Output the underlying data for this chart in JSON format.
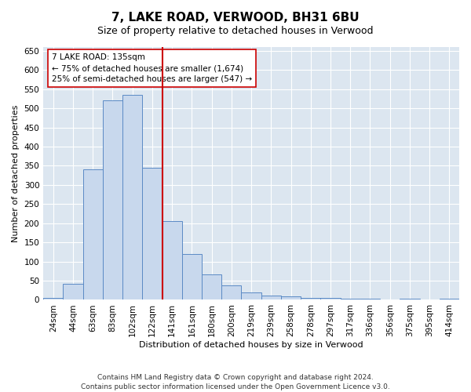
{
  "title": "7, LAKE ROAD, VERWOOD, BH31 6BU",
  "subtitle": "Size of property relative to detached houses in Verwood",
  "xlabel": "Distribution of detached houses by size in Verwood",
  "ylabel": "Number of detached properties",
  "bar_labels": [
    "24sqm",
    "44sqm",
    "63sqm",
    "83sqm",
    "102sqm",
    "122sqm",
    "141sqm",
    "161sqm",
    "180sqm",
    "200sqm",
    "219sqm",
    "239sqm",
    "258sqm",
    "278sqm",
    "297sqm",
    "317sqm",
    "336sqm",
    "356sqm",
    "375sqm",
    "395sqm",
    "414sqm"
  ],
  "bar_values": [
    5,
    42,
    340,
    520,
    535,
    345,
    205,
    120,
    67,
    37,
    19,
    12,
    10,
    5,
    5,
    2,
    2,
    0,
    2,
    0,
    3
  ],
  "bar_color": "#c8d8ed",
  "bar_edge_color": "#5b8ac5",
  "vline_color": "#cc0000",
  "annotation_text": "7 LAKE ROAD: 135sqm\n← 75% of detached houses are smaller (1,674)\n25% of semi-detached houses are larger (547) →",
  "annotation_box_color": "#ffffff",
  "annotation_box_edge": "#cc0000",
  "ylim": [
    0,
    660
  ],
  "yticks": [
    0,
    50,
    100,
    150,
    200,
    250,
    300,
    350,
    400,
    450,
    500,
    550,
    600,
    650
  ],
  "footer": "Contains HM Land Registry data © Crown copyright and database right 2024.\nContains public sector information licensed under the Open Government Licence v3.0.",
  "fig_bg_color": "#ffffff",
  "plot_bg_color": "#dce6f0",
  "grid_color": "#ffffff",
  "title_fontsize": 11,
  "subtitle_fontsize": 9,
  "axis_label_fontsize": 8,
  "tick_fontsize": 7.5,
  "footer_fontsize": 6.5
}
